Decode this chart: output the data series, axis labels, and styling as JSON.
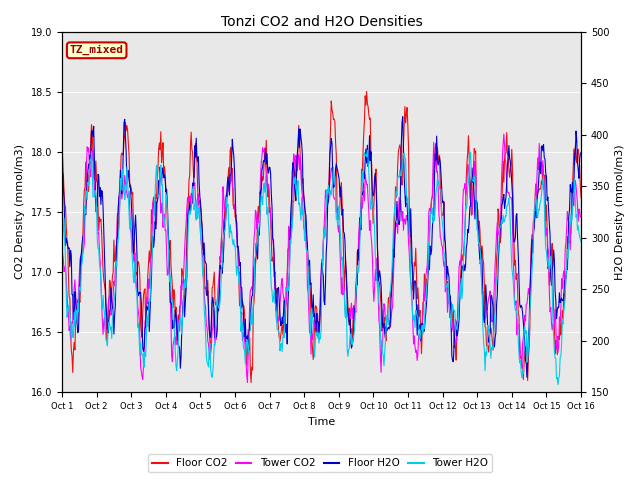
{
  "title": "Tonzi CO2 and H2O Densities",
  "xlabel": "Time",
  "ylabel_left": "CO2 Density (mmol/m3)",
  "ylabel_right": "H2O Density (mmol/m3)",
  "ylim_left": [
    16.0,
    19.0
  ],
  "ylim_right": [
    150,
    500
  ],
  "yticks_left": [
    16.0,
    16.5,
    17.0,
    17.5,
    18.0,
    18.5,
    19.0
  ],
  "yticks_right": [
    150,
    200,
    250,
    300,
    350,
    400,
    450,
    500
  ],
  "xtick_labels": [
    "Oct 1",
    "Oct 2",
    "Oct 3",
    "Oct 4",
    "Oct 5",
    "Oct 6",
    "Oct 7",
    "Oct 8",
    "Oct 9",
    "Oct 10",
    "Oct 11",
    "Oct 12",
    "Oct 13",
    "Oct 14",
    "Oct 15",
    "Oct 16"
  ],
  "n_days": 15,
  "points_per_day": 48,
  "floor_co2_color": "#ee1111",
  "tower_co2_color": "#ff00ff",
  "floor_h2o_color": "#0000cc",
  "tower_h2o_color": "#00ccee",
  "linewidth": 0.8,
  "legend_labels": [
    "Floor CO2",
    "Tower CO2",
    "Floor H2O",
    "Tower H2O"
  ],
  "annotation_text": "TZ_mixed",
  "annotation_bg": "#ffffcc",
  "annotation_edge": "#cc0000",
  "bg_color": "#e8e8e8",
  "seed": 42
}
